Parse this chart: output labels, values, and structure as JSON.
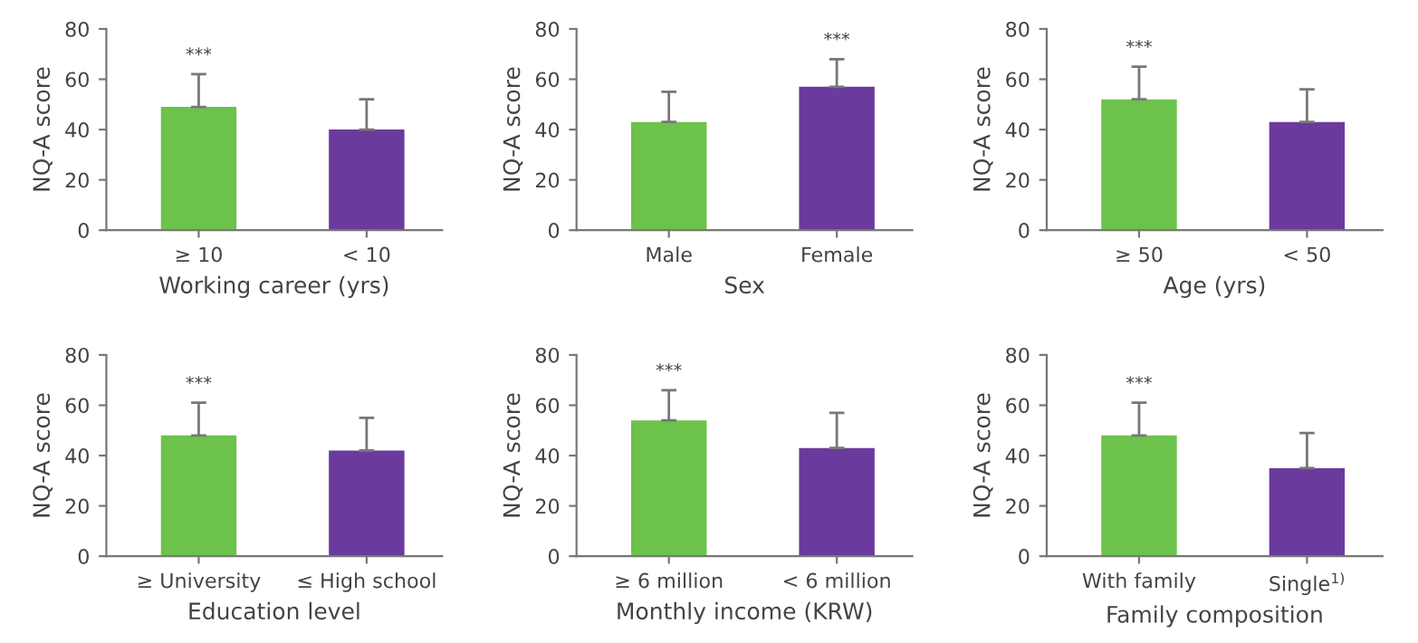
{
  "chart_data": [
    {
      "type": "bar",
      "xlabel": "Working career (yrs)",
      "ylabel": "NQ-A score",
      "categories": [
        "≥ 10",
        "< 10"
      ],
      "values": [
        49,
        40
      ],
      "errors": [
        [
          49,
          62
        ],
        [
          40,
          52
        ]
      ],
      "colors": [
        "#6cc24a",
        "#6a3a9c"
      ],
      "ylim": [
        0,
        80
      ],
      "yticks": [
        0,
        20,
        40,
        60,
        80
      ],
      "annotations": [
        {
          "text": "***",
          "x": "≥ 10",
          "y": 62
        }
      ]
    },
    {
      "type": "bar",
      "xlabel": "Sex",
      "ylabel": "NQ-A score",
      "categories": [
        "Male",
        "Female"
      ],
      "values": [
        43,
        57
      ],
      "errors": [
        [
          43,
          55
        ],
        [
          57,
          68
        ]
      ],
      "colors": [
        "#6cc24a",
        "#6a3a9c"
      ],
      "ylim": [
        0,
        80
      ],
      "yticks": [
        0,
        20,
        40,
        60,
        80
      ],
      "annotations": [
        {
          "text": "***",
          "x": "Female",
          "y": 68
        }
      ]
    },
    {
      "type": "bar",
      "xlabel": "Age (yrs)",
      "ylabel": "NQ-A score",
      "categories": [
        "≥ 50",
        "< 50"
      ],
      "values": [
        52,
        43
      ],
      "errors": [
        [
          52,
          65
        ],
        [
          43,
          56
        ]
      ],
      "colors": [
        "#6cc24a",
        "#6a3a9c"
      ],
      "ylim": [
        0,
        80
      ],
      "yticks": [
        0,
        20,
        40,
        60,
        80
      ],
      "annotations": [
        {
          "text": "***",
          "x": "≥ 50",
          "y": 65
        }
      ]
    },
    {
      "type": "bar",
      "xlabel": "Education level",
      "ylabel": "NQ-A score",
      "categories": [
        "≥ University",
        "≤ High school"
      ],
      "values": [
        48,
        42
      ],
      "errors": [
        [
          48,
          61
        ],
        [
          42,
          55
        ]
      ],
      "colors": [
        "#6cc24a",
        "#6a3a9c"
      ],
      "ylim": [
        0,
        80
      ],
      "yticks": [
        0,
        20,
        40,
        60,
        80
      ],
      "annotations": [
        {
          "text": "***",
          "x": "≥ University",
          "y": 61
        }
      ]
    },
    {
      "type": "bar",
      "xlabel": "Monthly income (KRW)",
      "ylabel": "NQ-A score",
      "categories": [
        "≥ 6 million",
        "< 6 million"
      ],
      "values": [
        54,
        43
      ],
      "errors": [
        [
          54,
          66
        ],
        [
          43,
          57
        ]
      ],
      "colors": [
        "#6cc24a",
        "#6a3a9c"
      ],
      "ylim": [
        0,
        80
      ],
      "yticks": [
        0,
        20,
        40,
        60,
        80
      ],
      "annotations": [
        {
          "text": "***",
          "x": "≥ 6 million",
          "y": 66
        }
      ]
    },
    {
      "type": "bar",
      "xlabel": "Family composition",
      "ylabel": "NQ-A score",
      "categories": [
        "With family",
        "Single$^{1)}$"
      ],
      "values": [
        48,
        35
      ],
      "errors": [
        [
          48,
          61
        ],
        [
          35,
          49
        ]
      ],
      "colors": [
        "#6cc24a",
        "#6a3a9c"
      ],
      "ylim": [
        0,
        80
      ],
      "yticks": [
        0,
        20,
        40,
        60,
        80
      ],
      "annotations": [
        {
          "text": "***",
          "x": "With family",
          "y": 61
        }
      ]
    }
  ]
}
